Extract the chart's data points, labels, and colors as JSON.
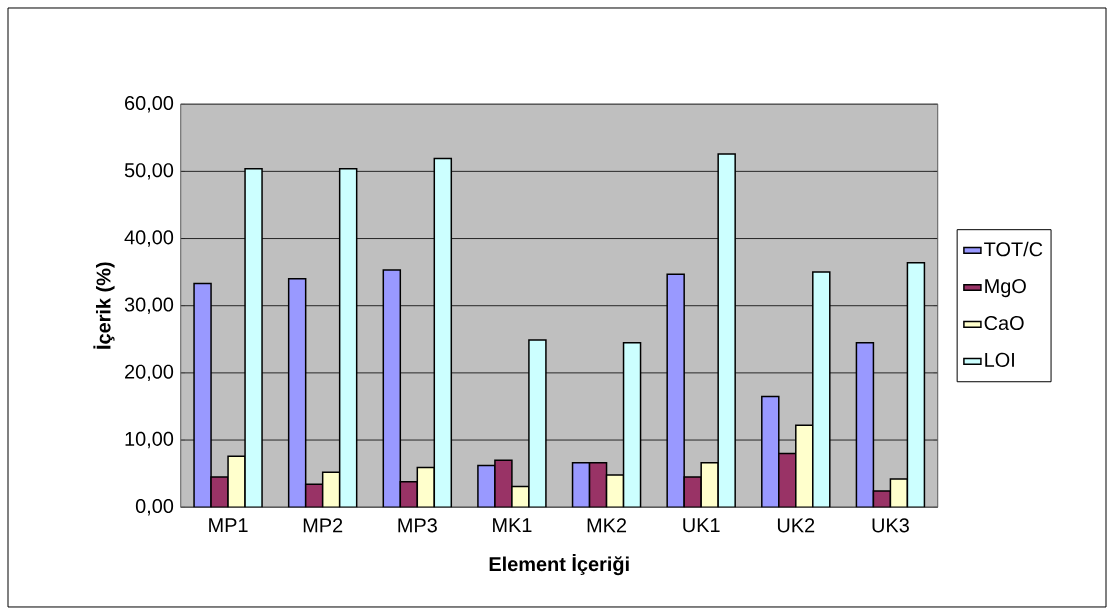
{
  "chart_data": {
    "type": "bar",
    "xlabel": "Element İçeriği",
    "ylabel": "İçerik (%)",
    "categories": [
      "MP1",
      "MP2",
      "MP3",
      "MK1",
      "MK2",
      "UK1",
      "UK2",
      "UK3"
    ],
    "series": [
      {
        "name": "TOT/C",
        "color": "#9999ff",
        "values": [
          33.3,
          34.0,
          35.3,
          6.2,
          6.6,
          34.7,
          16.5,
          24.5
        ]
      },
      {
        "name": "MgO",
        "color": "#993366",
        "values": [
          4.5,
          3.4,
          3.8,
          7.0,
          6.6,
          4.5,
          8.0,
          2.4
        ]
      },
      {
        "name": "CaO",
        "color": "#ffffcc",
        "values": [
          7.6,
          5.2,
          5.9,
          3.1,
          4.8,
          6.6,
          12.2,
          4.2
        ]
      },
      {
        "name": "LOI",
        "color": "#ccffff",
        "values": [
          50.4,
          50.4,
          51.9,
          24.9,
          24.5,
          52.6,
          35.0,
          36.4
        ]
      }
    ],
    "ylim": [
      0,
      60
    ],
    "yticks": [
      {
        "value": 0,
        "label": "0,00"
      },
      {
        "value": 10,
        "label": "10,00"
      },
      {
        "value": 20,
        "label": "20,00"
      },
      {
        "value": 30,
        "label": "30,00"
      },
      {
        "value": 40,
        "label": "40,00"
      },
      {
        "value": 50,
        "label": "50,00"
      },
      {
        "value": 60,
        "label": "60,00"
      }
    ],
    "grid": "y",
    "legend": "right"
  }
}
